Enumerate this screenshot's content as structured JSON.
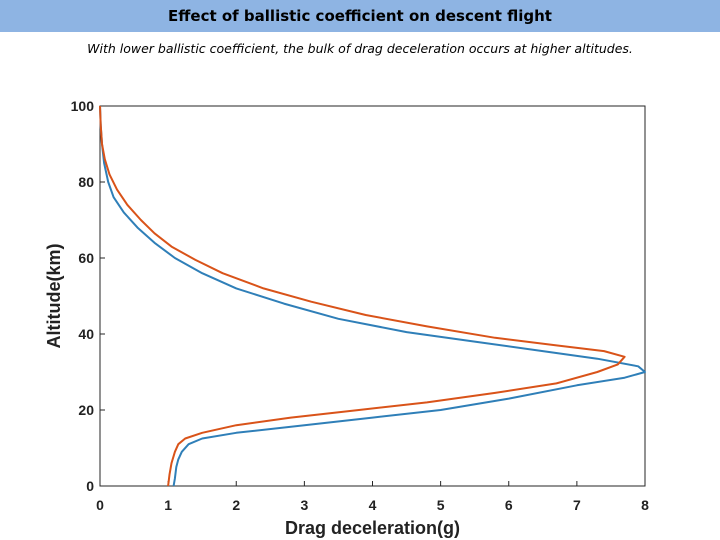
{
  "header": {
    "title": "Effect of ballistic coefficient on descent flight",
    "subtitle": "With lower ballistic coefficient, the bulk of drag deceleration occurs at higher altitudes."
  },
  "chart_data": {
    "type": "line",
    "xlabel": "Drag deceleration(g)",
    "ylabel": "Altitude(km)",
    "xlim": [
      0,
      8
    ],
    "ylim": [
      0,
      100
    ],
    "xticks": [
      0,
      1,
      2,
      3,
      4,
      5,
      6,
      7,
      8
    ],
    "yticks": [
      0,
      20,
      40,
      60,
      80,
      100
    ],
    "grid": false,
    "series": [
      {
        "color": "#2f7fb8",
        "points": [
          [
            1.08,
            0
          ],
          [
            1.1,
            2
          ],
          [
            1.12,
            5
          ],
          [
            1.15,
            7
          ],
          [
            1.2,
            9
          ],
          [
            1.3,
            11
          ],
          [
            1.5,
            12.5
          ],
          [
            2,
            14
          ],
          [
            3,
            16
          ],
          [
            4,
            18
          ],
          [
            5,
            20
          ],
          [
            6,
            23
          ],
          [
            7,
            26.5
          ],
          [
            7.7,
            28.5
          ],
          [
            8,
            30
          ],
          [
            7.9,
            31.5
          ],
          [
            7.3,
            33.5
          ],
          [
            6.5,
            35.5
          ],
          [
            5.5,
            38
          ],
          [
            4.5,
            40.5
          ],
          [
            3.5,
            44
          ],
          [
            2.7,
            48
          ],
          [
            2,
            52
          ],
          [
            1.5,
            56
          ],
          [
            1.1,
            60
          ],
          [
            0.8,
            64
          ],
          [
            0.55,
            68
          ],
          [
            0.35,
            72
          ],
          [
            0.2,
            76
          ],
          [
            0.12,
            80
          ],
          [
            0.06,
            85
          ],
          [
            0.03,
            90
          ],
          [
            0.01,
            95
          ],
          [
            0,
            100
          ]
        ]
      },
      {
        "color": "#d95319",
        "points": [
          [
            1,
            0
          ],
          [
            1.02,
            3
          ],
          [
            1.05,
            6
          ],
          [
            1.1,
            9
          ],
          [
            1.15,
            11
          ],
          [
            1.25,
            12.5
          ],
          [
            1.5,
            14
          ],
          [
            2,
            16
          ],
          [
            2.8,
            18
          ],
          [
            3.8,
            20
          ],
          [
            4.8,
            22
          ],
          [
            5.8,
            24.5
          ],
          [
            6.7,
            27
          ],
          [
            7.3,
            30
          ],
          [
            7.6,
            32
          ],
          [
            7.7,
            34
          ],
          [
            7.4,
            35.5
          ],
          [
            6.7,
            37
          ],
          [
            5.8,
            39
          ],
          [
            4.8,
            42
          ],
          [
            3.9,
            45
          ],
          [
            3.1,
            48.5
          ],
          [
            2.4,
            52
          ],
          [
            1.8,
            56
          ],
          [
            1.4,
            59.5
          ],
          [
            1.05,
            63
          ],
          [
            0.8,
            66.5
          ],
          [
            0.6,
            70
          ],
          [
            0.4,
            74
          ],
          [
            0.25,
            78
          ],
          [
            0.14,
            82
          ],
          [
            0.07,
            86
          ],
          [
            0.03,
            90
          ],
          [
            0.01,
            95
          ],
          [
            0,
            100
          ]
        ]
      }
    ]
  }
}
